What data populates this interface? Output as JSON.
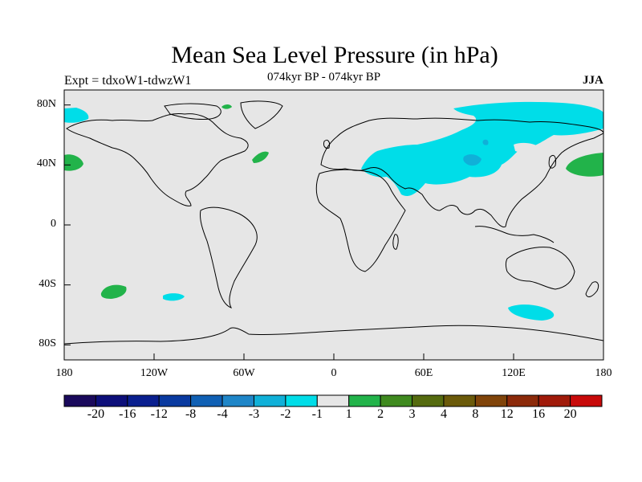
{
  "header": {
    "title": "Mean Sea Level Pressure (in hPa)",
    "expt": "Expt = tdxoW1-tdwzW1",
    "period": "074kyr BP - 074kyr BP",
    "season": "JJA"
  },
  "map": {
    "projection": "cylindrical-equidistant",
    "lon_range": [
      -180,
      180
    ],
    "lat_range": [
      -90,
      90
    ],
    "land_fill": "#e6e6e6",
    "coastline_color": "#000000",
    "lat_ticks": [
      {
        "lat": 80,
        "label": "80N"
      },
      {
        "lat": 40,
        "label": "40N"
      },
      {
        "lat": 0,
        "label": "0"
      },
      {
        "lat": -40,
        "label": "40S"
      },
      {
        "lat": -80,
        "label": "80S"
      }
    ],
    "lon_ticks": [
      {
        "lon": -180,
        "label": "180"
      },
      {
        "lon": -120,
        "label": "120W"
      },
      {
        "lon": -60,
        "label": "60W"
      },
      {
        "lon": 0,
        "label": "0"
      },
      {
        "lon": 60,
        "label": "60E"
      },
      {
        "lon": 120,
        "label": "120E"
      },
      {
        "lon": 180,
        "label": "180"
      }
    ]
  },
  "colorbar": {
    "colors": [
      "#1a0a5c",
      "#0d0f7a",
      "#0a1f8f",
      "#0a3aa0",
      "#1060b4",
      "#1f86c8",
      "#10b0d8",
      "#00dde8",
      "#e6e6e6",
      "#22b34a",
      "#3f8a1f",
      "#556b0f",
      "#6b5a0a",
      "#80440a",
      "#8c2a0a",
      "#a01a0a",
      "#c80a0a"
    ],
    "labels": [
      "-20",
      "-16",
      "-12",
      "-8",
      "-4",
      "-3",
      "-2",
      "-1",
      "1",
      "2",
      "3",
      "4",
      "8",
      "12",
      "16",
      "20"
    ]
  },
  "anomalies": [
    {
      "name": "north-atlantic-positive",
      "value": 1.5
    },
    {
      "name": "north-pacific-west-positive",
      "value": 1.5
    },
    {
      "name": "north-pacific-east-positive",
      "value": 1.5
    },
    {
      "name": "south-pacific-positive",
      "value": 1.5
    },
    {
      "name": "asia-negative",
      "value": -1.5
    },
    {
      "name": "central-asia-core-negative",
      "value": -2.5
    },
    {
      "name": "arctic-negative",
      "value": -1.5
    },
    {
      "name": "south-pacific-negative",
      "value": -1.5
    },
    {
      "name": "southern-ocean-negative",
      "value": -1.5
    }
  ]
}
